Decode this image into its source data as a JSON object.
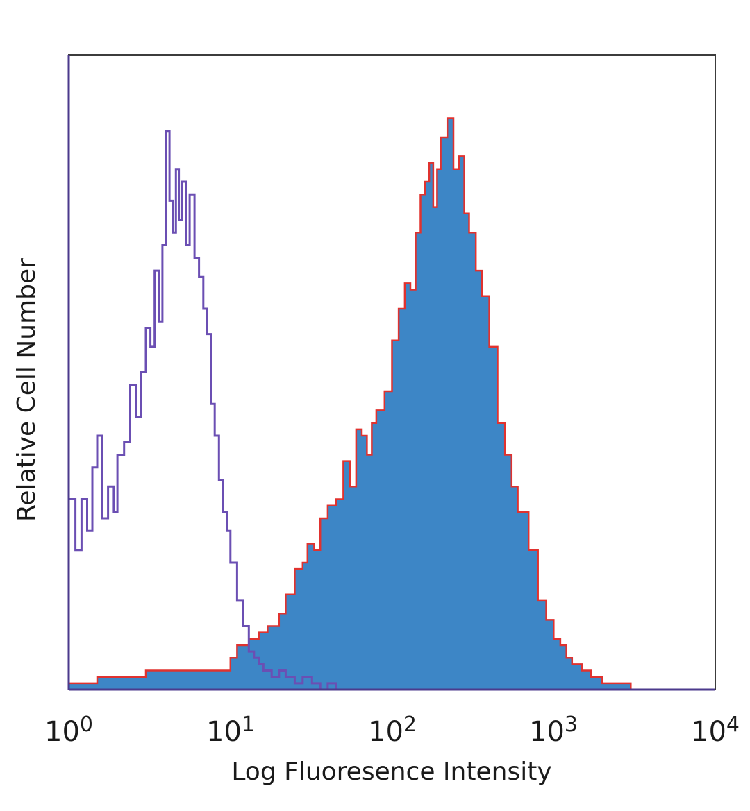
{
  "chart_data": {
    "type": "area",
    "title": "",
    "xlabel": "Log Fluoresence Intensity",
    "ylabel": "Relative Cell Number",
    "x_scale": "log",
    "xlim": [
      1,
      10000
    ],
    "ylim": [
      0,
      100
    ],
    "x_ticks": [
      {
        "base": "10",
        "exp": "0",
        "value": 1
      },
      {
        "base": "10",
        "exp": "1",
        "value": 10
      },
      {
        "base": "10",
        "exp": "2",
        "value": 100
      },
      {
        "base": "10",
        "exp": "3",
        "value": 1000
      },
      {
        "base": "10",
        "exp": "4",
        "value": 10000
      }
    ],
    "grid": false,
    "legend": "none",
    "series": [
      {
        "style": "outline",
        "color": "#6b4fb3",
        "x": [
          1.0,
          1.1,
          1.2,
          1.3,
          1.4,
          1.5,
          1.6,
          1.75,
          1.9,
          2.0,
          2.2,
          2.4,
          2.6,
          2.8,
          3.0,
          3.2,
          3.4,
          3.6,
          3.8,
          4.0,
          4.2,
          4.4,
          4.6,
          4.8,
          5.0,
          5.3,
          5.6,
          6.0,
          6.4,
          6.8,
          7.2,
          7.6,
          8.0,
          8.5,
          9.0,
          9.5,
          10.0,
          11.0,
          12.0,
          13.0,
          14.0,
          15.0,
          16.0,
          18.0,
          20.0,
          22.0,
          25.0,
          28.0,
          32.0,
          36.0,
          40.0,
          45.0
        ],
        "y": [
          30,
          22,
          30,
          25,
          35,
          40,
          27,
          32,
          28,
          37,
          39,
          48,
          43,
          50,
          57,
          54,
          66,
          58,
          70,
          88,
          77,
          72,
          82,
          74,
          80,
          70,
          78,
          68,
          65,
          60,
          56,
          45,
          40,
          33,
          28,
          25,
          20,
          14,
          10,
          6,
          5,
          4,
          3,
          2,
          3,
          2,
          1,
          2,
          1,
          0,
          1,
          0
        ]
      },
      {
        "style": "filled",
        "color": "#3d86c6",
        "edge_color": "#e0322f",
        "x": [
          1.0,
          1.5,
          2.0,
          3.0,
          4.0,
          5.0,
          6.0,
          8.0,
          10.0,
          11.0,
          13.0,
          15.0,
          17.0,
          20.0,
          22.0,
          25.0,
          28.0,
          30.0,
          33.0,
          36.0,
          40.0,
          45.0,
          50.0,
          55.0,
          60.0,
          65.0,
          70.0,
          75.0,
          80.0,
          90.0,
          100.0,
          110.0,
          120.0,
          130.0,
          140.0,
          150.0,
          160.0,
          170.0,
          180.0,
          190.0,
          200.0,
          220.0,
          240.0,
          260.0,
          280.0,
          300.0,
          330.0,
          360.0,
          400.0,
          450.0,
          500.0,
          550.0,
          600.0,
          700.0,
          800.0,
          900.0,
          1000.0,
          1100.0,
          1200.0,
          1300.0,
          1400.0,
          1500.0,
          1700.0,
          2000.0,
          2500.0,
          3000.0,
          3500.0,
          4000.0
        ],
        "y": [
          1,
          2,
          2,
          3,
          3,
          3,
          3,
          3,
          5,
          7,
          8,
          9,
          10,
          12,
          15,
          19,
          20,
          23,
          22,
          27,
          29,
          30,
          36,
          32,
          41,
          40,
          37,
          42,
          44,
          47,
          55,
          60,
          64,
          63,
          72,
          78,
          80,
          83,
          76,
          82,
          87,
          90,
          82,
          84,
          75,
          72,
          66,
          62,
          54,
          42,
          37,
          32,
          28,
          22,
          14,
          11,
          8,
          7,
          5,
          4,
          4,
          3,
          2,
          1,
          1,
          0,
          0,
          0
        ]
      }
    ]
  }
}
